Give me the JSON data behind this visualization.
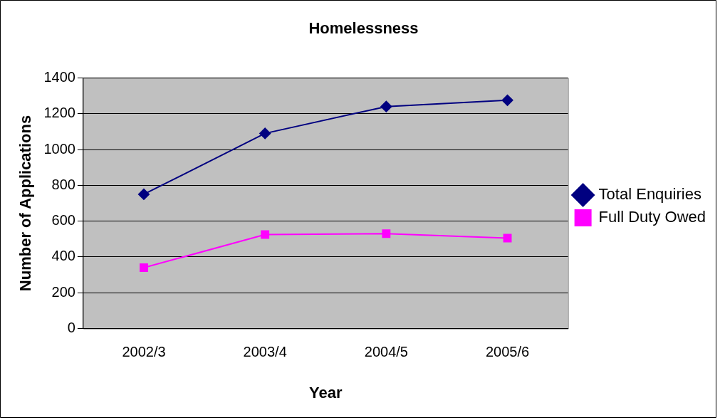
{
  "chart_data": {
    "type": "line",
    "title": "Homelessness",
    "xlabel": "Year",
    "ylabel": "Number of Applications",
    "categories": [
      "2002/3",
      "2003/4",
      "2004/5",
      "2005/6"
    ],
    "series": [
      {
        "name": "Total Enquiries",
        "color": "#000080",
        "marker": "diamond",
        "values": [
          750,
          1090,
          1240,
          1275
        ]
      },
      {
        "name": "Full Duty Owed",
        "color": "#ff00ff",
        "marker": "square",
        "values": [
          340,
          525,
          530,
          505
        ]
      }
    ],
    "ylim": [
      0,
      1400
    ],
    "yticks": [
      0,
      200,
      400,
      600,
      800,
      1000,
      1200,
      1400
    ],
    "grid": "y",
    "legend": "right",
    "line_style": "solid"
  }
}
